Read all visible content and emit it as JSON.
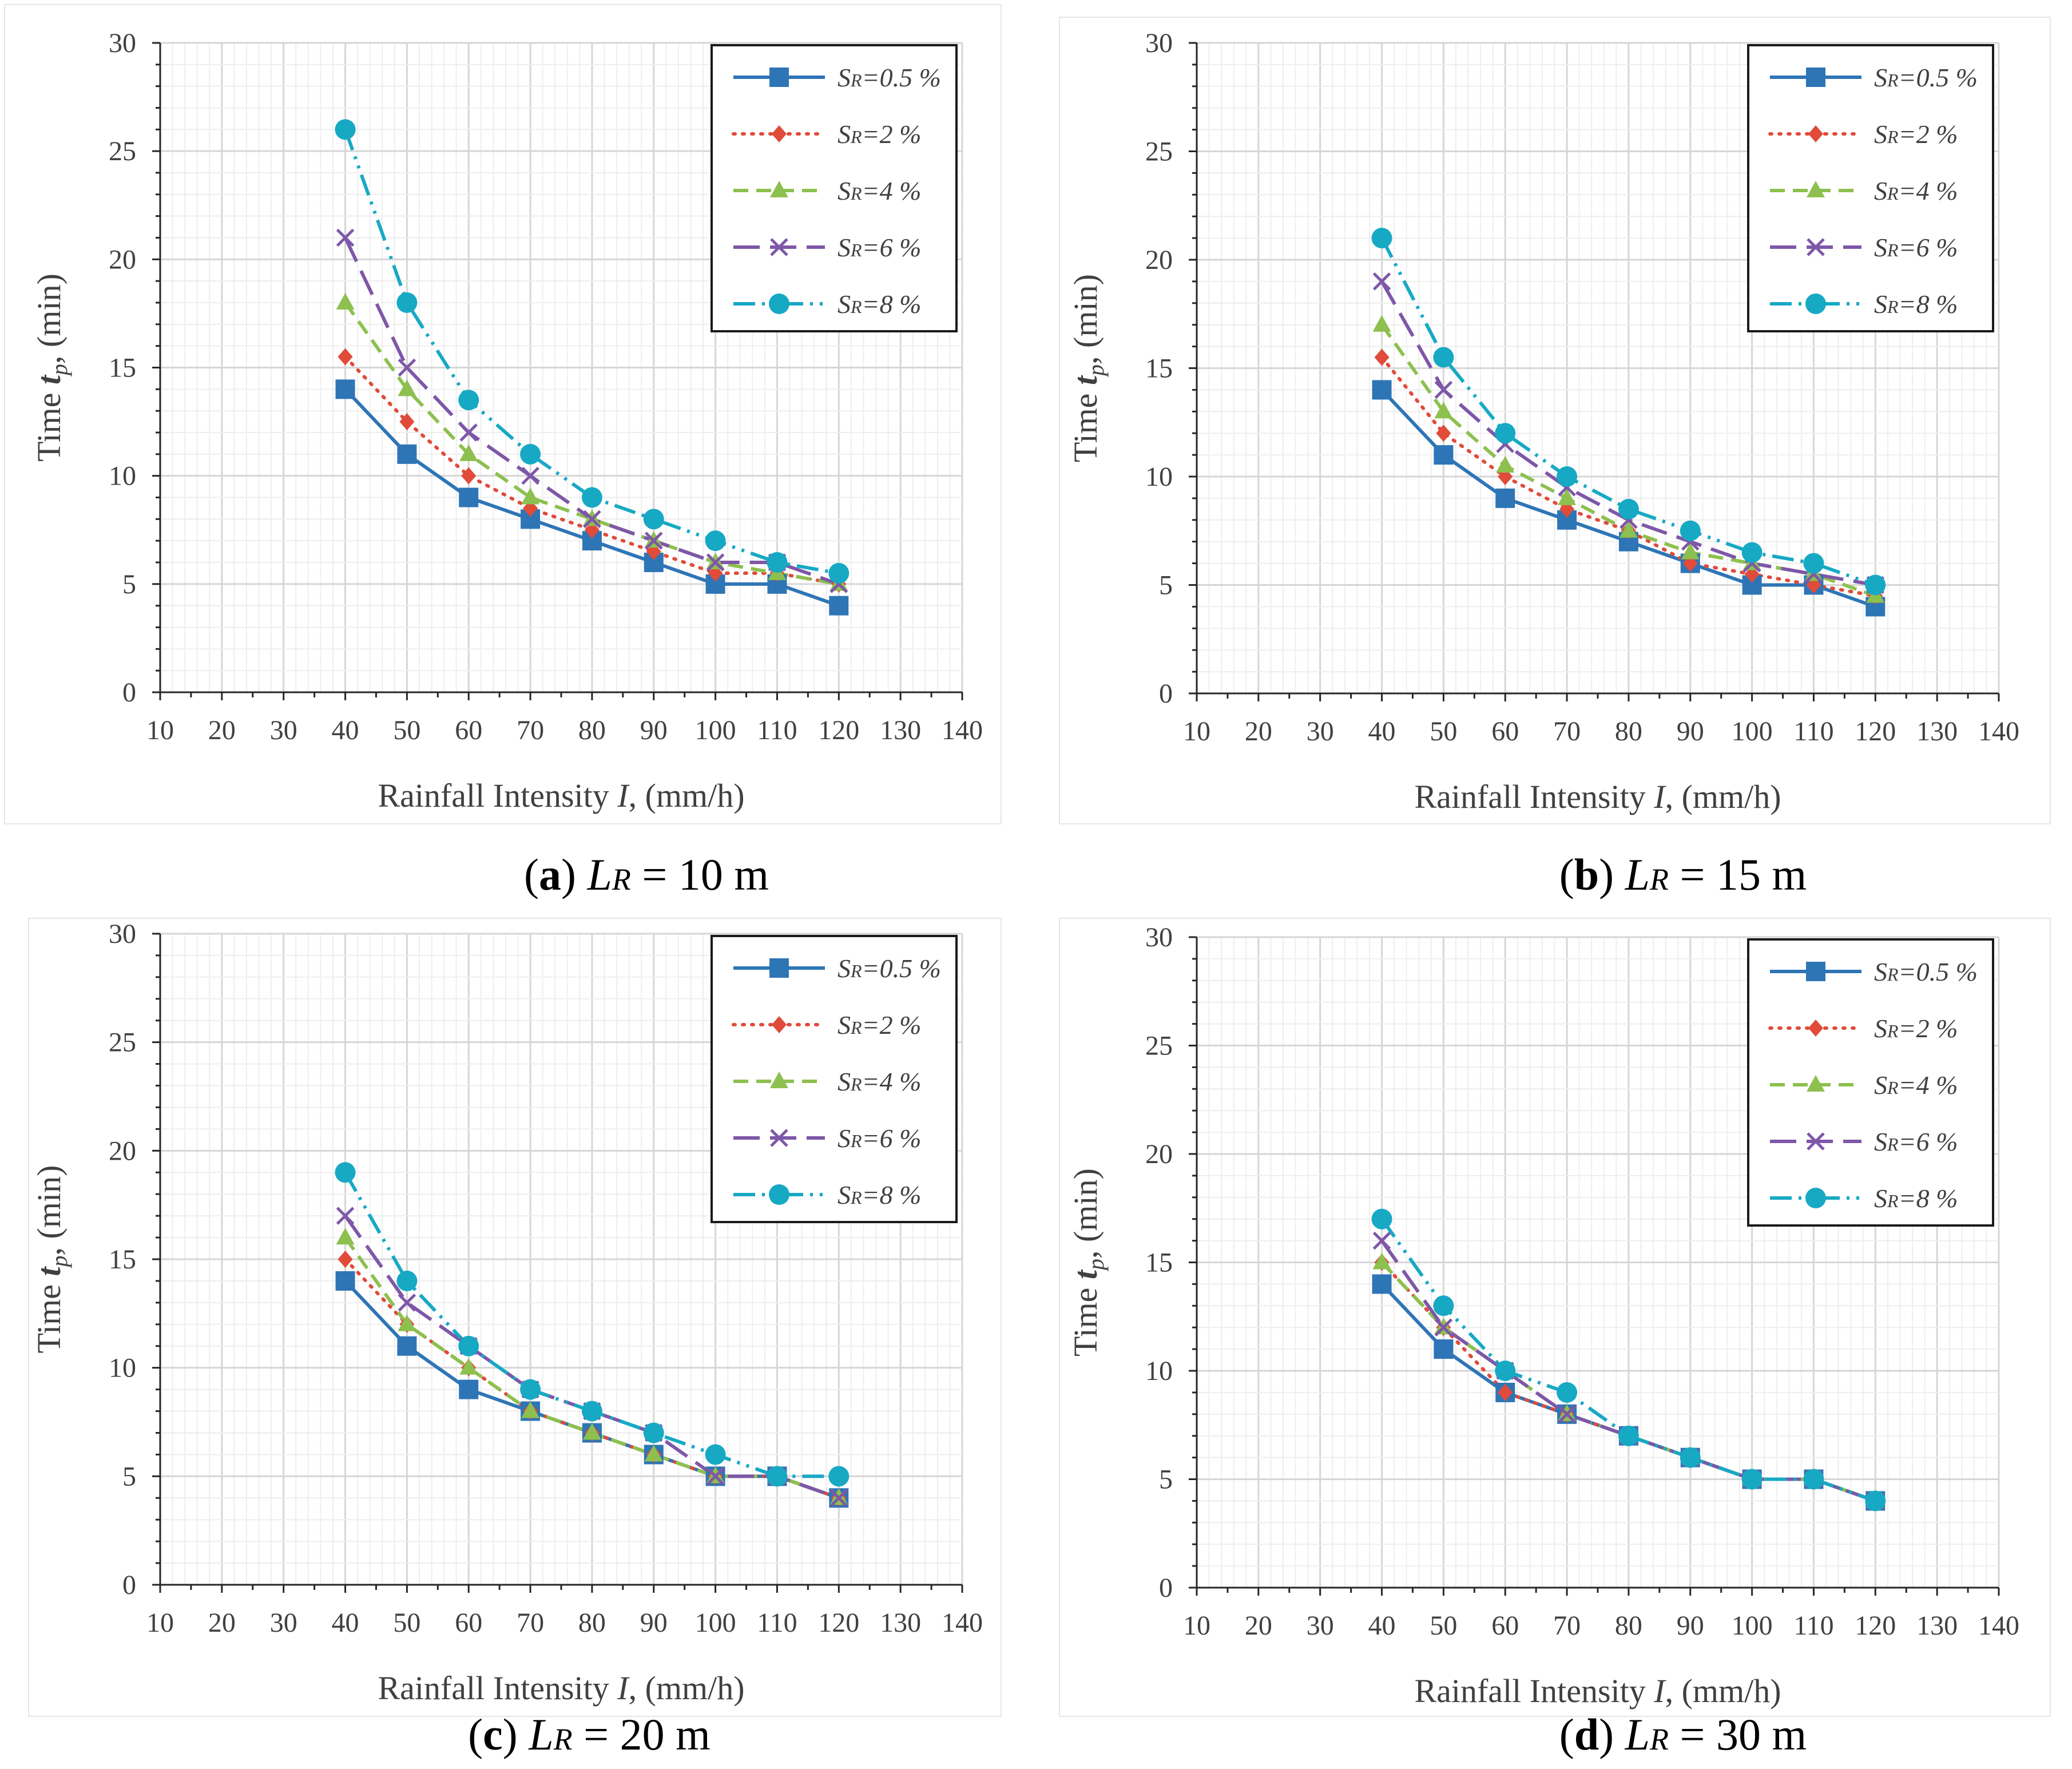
{
  "chart_data": [
    {
      "id": "a",
      "type": "line",
      "caption": {
        "tag": "a",
        "open": "(",
        "close": ")",
        "var_main": "L",
        "var_sub": "R",
        "equals": " = ",
        "value": "10 m"
      },
      "xlabel": {
        "text": "Rainfall Intensity ",
        "var": "I",
        "unit": ", (mm/h)"
      },
      "ylabel": {
        "text": "Time ",
        "var_main": "t",
        "var_sub": "p",
        "unit": ", (min)"
      },
      "xlim": [
        10,
        140
      ],
      "ylim": [
        0,
        30
      ],
      "xticks": [
        "10",
        "20",
        "30",
        "40",
        "50",
        "60",
        "70",
        "80",
        "90",
        "100",
        "110",
        "120",
        "130",
        "140"
      ],
      "yticks": [
        "0",
        "5",
        "10",
        "15",
        "20",
        "25",
        "30"
      ],
      "grid": true,
      "legend_position": "top-right",
      "x": [
        40,
        50,
        60,
        70,
        80,
        90,
        100,
        110,
        120
      ],
      "series": [
        {
          "name": "SR=0.5 %",
          "name_main": "S",
          "name_sub": "R",
          "name_rest": "=0.5 %",
          "color": "#2E75B6",
          "marker": "square",
          "dash": "solid",
          "values": [
            14,
            11,
            9,
            8,
            7,
            6,
            5,
            5,
            4
          ]
        },
        {
          "name": "SR=2 %",
          "name_main": "S",
          "name_sub": "R",
          "name_rest": "=2 %",
          "color": "#E04B3A",
          "marker": "diamond",
          "dash": "dot",
          "values": [
            15.5,
            12.5,
            10,
            8.5,
            7.5,
            6.5,
            5.5,
            5.5,
            5
          ]
        },
        {
          "name": "SR=4 %",
          "name_main": "S",
          "name_sub": "R",
          "name_rest": "=4 %",
          "color": "#8DC04F",
          "marker": "triangle",
          "dash": "dash",
          "values": [
            18,
            14,
            11,
            9,
            8,
            7,
            6,
            5.5,
            5
          ]
        },
        {
          "name": "SR=6 %",
          "name_main": "S",
          "name_sub": "R",
          "name_rest": "=6 %",
          "color": "#7E57A8",
          "marker": "x",
          "dash": "longdash",
          "values": [
            21,
            15,
            12,
            10,
            8,
            7,
            6,
            6,
            5
          ]
        },
        {
          "name": "SR=8 %",
          "name_main": "S",
          "name_sub": "R",
          "name_rest": "=8 %",
          "color": "#17A9C4",
          "marker": "circle",
          "dash": "dashdotdot",
          "values": [
            26,
            18,
            13.5,
            11,
            9,
            8,
            7,
            6,
            5.5
          ]
        }
      ]
    },
    {
      "id": "b",
      "type": "line",
      "caption": {
        "tag": "b",
        "open": "(",
        "close": ")",
        "var_main": "L",
        "var_sub": "R",
        "equals": " = ",
        "value": "15 m"
      },
      "xlabel": {
        "text": "Rainfall Intensity ",
        "var": "I",
        "unit": ", (mm/h)"
      },
      "ylabel": {
        "text": "Time ",
        "var_main": "t",
        "var_sub": "p",
        "unit": ", (min)"
      },
      "xlim": [
        10,
        140
      ],
      "ylim": [
        0,
        30
      ],
      "xticks": [
        "10",
        "20",
        "30",
        "40",
        "50",
        "60",
        "70",
        "80",
        "90",
        "100",
        "110",
        "120",
        "130",
        "140"
      ],
      "yticks": [
        "0",
        "5",
        "10",
        "15",
        "20",
        "25",
        "30"
      ],
      "grid": true,
      "legend_position": "top-right",
      "x": [
        40,
        50,
        60,
        70,
        80,
        90,
        100,
        110,
        120
      ],
      "series": [
        {
          "name": "SR=0.5 %",
          "name_main": "S",
          "name_sub": "R",
          "name_rest": "=0.5 %",
          "color": "#2E75B6",
          "marker": "square",
          "dash": "solid",
          "values": [
            14,
            11,
            9,
            8,
            7,
            6,
            5,
            5,
            4
          ]
        },
        {
          "name": "SR=2 %",
          "name_main": "S",
          "name_sub": "R",
          "name_rest": "=2 %",
          "color": "#E04B3A",
          "marker": "diamond",
          "dash": "dot",
          "values": [
            15.5,
            12,
            10,
            8.5,
            7.5,
            6,
            5.5,
            5,
            4.5
          ]
        },
        {
          "name": "SR=4 %",
          "name_main": "S",
          "name_sub": "R",
          "name_rest": "=4 %",
          "color": "#8DC04F",
          "marker": "triangle",
          "dash": "dash",
          "values": [
            17,
            13,
            10.5,
            9,
            7.5,
            6.5,
            6,
            5.5,
            4.5
          ]
        },
        {
          "name": "SR=6 %",
          "name_main": "S",
          "name_sub": "R",
          "name_rest": "=6 %",
          "color": "#7E57A8",
          "marker": "x",
          "dash": "longdash",
          "values": [
            19,
            14,
            11.5,
            9.5,
            8,
            7,
            6,
            5.5,
            5
          ]
        },
        {
          "name": "SR=8 %",
          "name_main": "S",
          "name_sub": "R",
          "name_rest": "=8 %",
          "color": "#17A9C4",
          "marker": "circle",
          "dash": "dashdotdot",
          "values": [
            21,
            15.5,
            12,
            10,
            8.5,
            7.5,
            6.5,
            6,
            5
          ]
        }
      ]
    },
    {
      "id": "c",
      "type": "line",
      "caption": {
        "tag": "c",
        "open": "(",
        "close": ")",
        "var_main": "L",
        "var_sub": "R",
        "equals": " = ",
        "value": "20 m"
      },
      "xlabel": {
        "text": "Rainfall Intensity ",
        "var": "I",
        "unit": ", (mm/h)"
      },
      "ylabel": {
        "text": "Time ",
        "var_main": "t",
        "var_sub": "p",
        "unit": ", (min)"
      },
      "xlim": [
        10,
        140
      ],
      "ylim": [
        0,
        30
      ],
      "xticks": [
        "10",
        "20",
        "30",
        "40",
        "50",
        "60",
        "70",
        "80",
        "90",
        "100",
        "110",
        "120",
        "130",
        "140"
      ],
      "yticks": [
        "0",
        "5",
        "10",
        "15",
        "20",
        "25",
        "30"
      ],
      "grid": true,
      "legend_position": "top-right",
      "x": [
        40,
        50,
        60,
        70,
        80,
        90,
        100,
        110,
        120
      ],
      "series": [
        {
          "name": "SR=0.5 %",
          "name_main": "S",
          "name_sub": "R",
          "name_rest": "=0.5 %",
          "color": "#2E75B6",
          "marker": "square",
          "dash": "solid",
          "values": [
            14,
            11,
            9,
            8,
            7,
            6,
            5,
            5,
            4
          ]
        },
        {
          "name": "SR=2 %",
          "name_main": "S",
          "name_sub": "R",
          "name_rest": "=2 %",
          "color": "#E04B3A",
          "marker": "diamond",
          "dash": "dot",
          "values": [
            15,
            12,
            10,
            8,
            7,
            6,
            5,
            5,
            4
          ]
        },
        {
          "name": "SR=4 %",
          "name_main": "S",
          "name_sub": "R",
          "name_rest": "=4 %",
          "color": "#8DC04F",
          "marker": "triangle",
          "dash": "dash",
          "values": [
            16,
            12,
            10,
            8,
            7,
            6,
            5,
            5,
            4
          ]
        },
        {
          "name": "SR=6 %",
          "name_main": "S",
          "name_sub": "R",
          "name_rest": "=6 %",
          "color": "#7E57A8",
          "marker": "x",
          "dash": "longdash",
          "values": [
            17,
            13,
            11,
            9,
            8,
            7,
            5,
            5,
            4
          ]
        },
        {
          "name": "SR=8 %",
          "name_main": "S",
          "name_sub": "R",
          "name_rest": "=8 %",
          "color": "#17A9C4",
          "marker": "circle",
          "dash": "dashdotdot",
          "values": [
            19,
            14,
            11,
            9,
            8,
            7,
            6,
            5,
            5
          ]
        }
      ]
    },
    {
      "id": "d",
      "type": "line",
      "caption": {
        "tag": "d",
        "open": "(",
        "close": ")",
        "var_main": "L",
        "var_sub": "R",
        "equals": " = ",
        "value": "30 m"
      },
      "xlabel": {
        "text": "Rainfall Intensity ",
        "var": "I",
        "unit": ", (mm/h)"
      },
      "ylabel": {
        "text": "Time ",
        "var_main": "t",
        "var_sub": "p",
        "unit": ", (min)"
      },
      "xlim": [
        10,
        140
      ],
      "ylim": [
        0,
        30
      ],
      "xticks": [
        "10",
        "20",
        "30",
        "40",
        "50",
        "60",
        "70",
        "80",
        "90",
        "100",
        "110",
        "120",
        "130",
        "140"
      ],
      "yticks": [
        "0",
        "5",
        "10",
        "15",
        "20",
        "25",
        "30"
      ],
      "grid": true,
      "legend_position": "top-right",
      "x": [
        40,
        50,
        60,
        70,
        80,
        90,
        100,
        110,
        120
      ],
      "series": [
        {
          "name": "SR=0.5 %",
          "name_main": "S",
          "name_sub": "R",
          "name_rest": "=0.5 %",
          "color": "#2E75B6",
          "marker": "square",
          "dash": "solid",
          "values": [
            14,
            11,
            9,
            8,
            7,
            6,
            5,
            5,
            4
          ]
        },
        {
          "name": "SR=2 %",
          "name_main": "S",
          "name_sub": "R",
          "name_rest": "=2 %",
          "color": "#E04B3A",
          "marker": "diamond",
          "dash": "dot",
          "values": [
            15,
            12,
            9,
            8,
            7,
            6,
            5,
            5,
            4
          ]
        },
        {
          "name": "SR=4 %",
          "name_main": "S",
          "name_sub": "R",
          "name_rest": "=4 %",
          "color": "#8DC04F",
          "marker": "triangle",
          "dash": "dash",
          "values": [
            15,
            12,
            10,
            8,
            7,
            6,
            5,
            5,
            4
          ]
        },
        {
          "name": "SR=6 %",
          "name_main": "S",
          "name_sub": "R",
          "name_rest": "=6 %",
          "color": "#7E57A8",
          "marker": "x",
          "dash": "longdash",
          "values": [
            16,
            12,
            10,
            8,
            7,
            6,
            5,
            5,
            4
          ]
        },
        {
          "name": "SR=8 %",
          "name_main": "S",
          "name_sub": "R",
          "name_rest": "=8 %",
          "color": "#17A9C4",
          "marker": "circle",
          "dash": "dashdotdot",
          "values": [
            17,
            13,
            10,
            9,
            7,
            6,
            5,
            5,
            4
          ]
        }
      ]
    }
  ]
}
